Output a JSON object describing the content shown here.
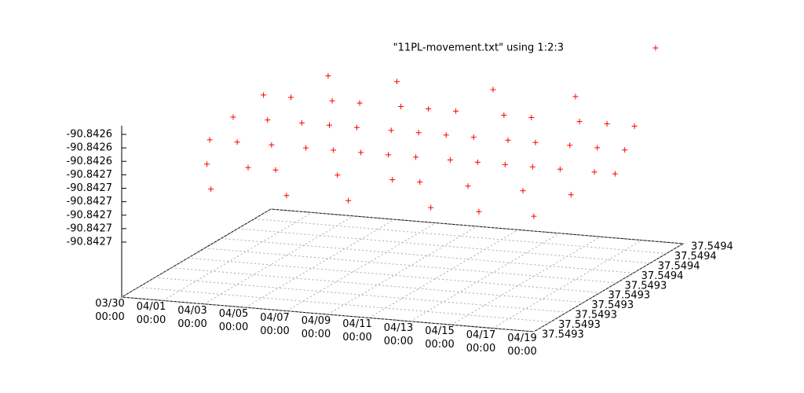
{
  "chart_data": {
    "type": "scatter3d",
    "series": [
      {
        "name": "\"11PL-movement.txt\" using 1:2:3",
        "color": "#ff0000",
        "x": [
          "03/30 06:00",
          "03/30 14:00",
          "03/30 22:00",
          "03/31 06:00",
          "03/31 14:00",
          "03/31 22:00",
          "04/01 06:00",
          "04/01 14:00",
          "04/01 22:00",
          "04/02 06:00",
          "04/02 14:00",
          "04/02 22:00",
          "04/03 06:00",
          "04/03 14:00",
          "04/03 22:00",
          "04/04 06:00",
          "04/04 14:00",
          "04/04 22:00",
          "04/05 06:00",
          "04/05 14:00",
          "04/05 22:00",
          "04/06 06:00",
          "04/06 14:00",
          "04/06 22:00",
          "04/07 06:00",
          "04/07 14:00",
          "04/07 22:00",
          "04/08 06:00",
          "04/08 14:00",
          "04/08 22:00",
          "04/09 06:00",
          "04/09 14:00",
          "04/09 22:00",
          "04/10 06:00",
          "04/10 14:00",
          "04/10 22:00",
          "04/11 06:00",
          "04/11 14:00",
          "04/11 22:00",
          "04/12 06:00",
          "04/12 14:00",
          "04/12 22:00",
          "04/13 06:00",
          "04/13 14:00",
          "04/13 22:00",
          "04/14 06:00",
          "04/14 14:00",
          "04/14 22:00",
          "04/15 06:00",
          "04/15 14:00",
          "04/15 22:00",
          "04/16 06:00",
          "04/16 14:00",
          "04/16 22:00",
          "04/17 06:00",
          "04/17 14:00",
          "04/17 22:00",
          "04/18 06:00",
          "04/18 14:00",
          "04/18 22:00"
        ],
        "y": [
          37.54934,
          37.54935,
          37.54933,
          37.54936,
          37.54934,
          37.54932,
          37.54935,
          37.54936,
          37.54933,
          37.54934,
          37.54937,
          37.54935,
          37.54933,
          37.54936,
          37.54934,
          37.54935,
          37.54932,
          37.54936,
          37.54934,
          37.54935,
          37.54937,
          37.54933,
          37.54934,
          37.54936,
          37.54935,
          37.54932,
          37.54934,
          37.54936,
          37.54935,
          37.54933,
          37.54934,
          37.54936,
          37.54935,
          37.54933,
          37.54937,
          37.54934,
          37.54935,
          37.54932,
          37.54936,
          37.54934,
          37.54933,
          37.54935,
          37.54936,
          37.54934,
          37.54932,
          37.54935,
          37.54937,
          37.54934,
          37.54933,
          37.54936,
          37.54935,
          37.54934,
          37.54932,
          37.54936,
          37.54935,
          37.54933,
          37.54934,
          37.54936,
          37.54935,
          37.54934
        ],
        "z": [
          -90.84266,
          -90.84265,
          -90.84267,
          -90.84264,
          -90.84266,
          -90.84268,
          -90.84265,
          -90.84264,
          -90.84267,
          -90.84266,
          -90.84263,
          -90.84265,
          -90.84267,
          -90.84264,
          -90.84266,
          -90.84265,
          -90.84268,
          -90.84264,
          -90.84266,
          -90.84265,
          -90.84263,
          -90.84267,
          -90.84266,
          -90.84264,
          -90.84265,
          -90.84268,
          -90.84266,
          -90.84264,
          -90.84265,
          -90.84267,
          -90.84266,
          -90.84264,
          -90.84265,
          -90.84267,
          -90.84263,
          -90.84266,
          -90.84265,
          -90.84268,
          -90.84264,
          -90.84266,
          -90.84267,
          -90.84265,
          -90.84264,
          -90.84266,
          -90.84268,
          -90.84265,
          -90.84263,
          -90.84266,
          -90.84267,
          -90.84264,
          -90.84265,
          -90.84266,
          -90.84268,
          -90.84264,
          -90.84265,
          -90.84267,
          -90.84266,
          -90.84264,
          -90.84265,
          -90.84266
        ]
      }
    ],
    "xlim": [
      "03/30\n00:00",
      "04/19\n00:00"
    ],
    "xticks": [
      "03/30\n00:00",
      "04/01\n00:00",
      "04/03\n00:00",
      "04/05\n00:00",
      "04/07\n00:00",
      "04/09\n00:00",
      "04/11\n00:00",
      "04/13\n00:00",
      "04/15\n00:00",
      "04/17\n00:00",
      "04/19\n00:00"
    ],
    "ylim": [
      37.54929,
      37.54938
    ],
    "yticks": [
      {
        "value": 37.54929,
        "label": "37.5493"
      },
      {
        "value": 37.5493,
        "label": "37.5493"
      },
      {
        "value": 37.54931,
        "label": "37.5493"
      },
      {
        "value": 37.54932,
        "label": "37.5493"
      },
      {
        "value": 37.54933,
        "label": "37.5493"
      },
      {
        "value": 37.54934,
        "label": "37.5493"
      },
      {
        "value": 37.54935,
        "label": "37.5494"
      },
      {
        "value": 37.54936,
        "label": "37.5494"
      },
      {
        "value": 37.54937,
        "label": "37.5494"
      },
      {
        "value": 37.54938,
        "label": "37.5494"
      }
    ],
    "zlim": [
      -90.8427,
      -90.84262
    ],
    "zticks": [
      -90.8427,
      {
        "value": -90.84269,
        "label": "-90.8427"
      },
      {
        "value": -90.84268,
        "label": "-90.8427"
      },
      {
        "value": -90.84267,
        "label": "-90.8427"
      },
      {
        "value": -90.84266,
        "label": "-90.8427"
      },
      {
        "value": -90.84265,
        "label": "-90.8427"
      },
      {
        "value": -90.84264,
        "label": "-90.8426"
      },
      {
        "value": -90.84263,
        "label": "-90.8426"
      },
      {
        "value": -90.84262,
        "label": "-90.8426"
      }
    ],
    "grid": true
  }
}
